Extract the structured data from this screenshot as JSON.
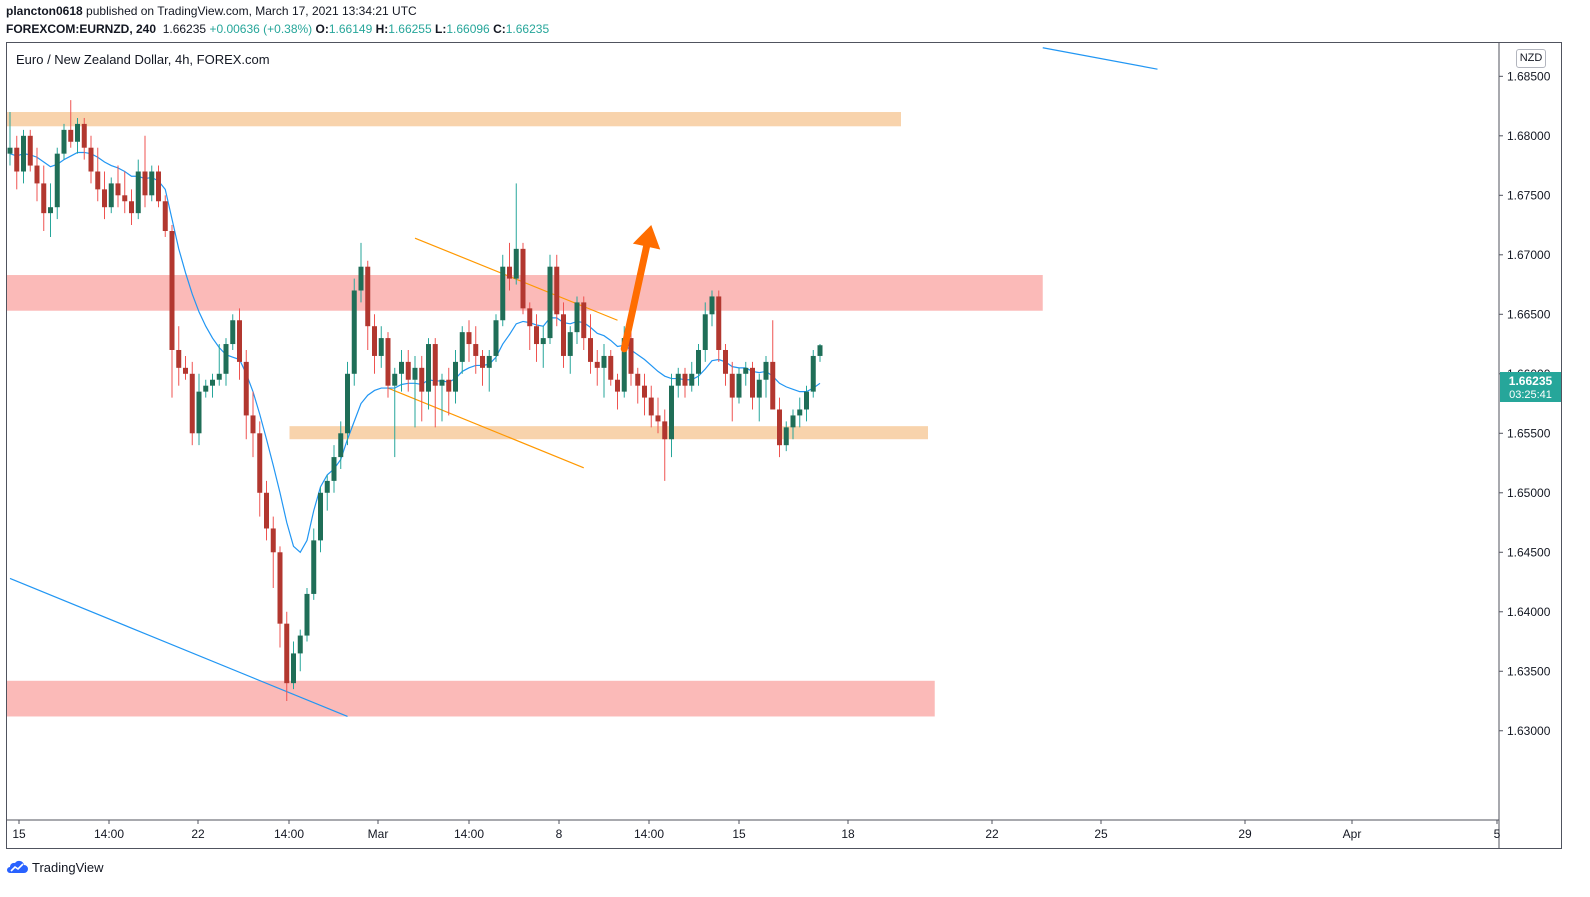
{
  "header": {
    "author": "plancton0618",
    "published_text": "published on TradingView.com, March 17, 2021 13:34:21 UTC",
    "ticker": "FOREXCOM:EURNZD, 240",
    "last": "1.66235",
    "change": "+0.00636 (+0.38%)",
    "o_label": "O:",
    "o_value": "1.66149",
    "h_label": "H:",
    "h_value": "1.66255",
    "l_label": "L:",
    "l_value": "1.66096",
    "c_label": "C:",
    "c_value": "1.66235"
  },
  "chart": {
    "symbol_title": "Euro / New Zealand Dollar, 4h, FOREX.com",
    "currency": "NZD",
    "price_tag": "1.66235",
    "countdown": "03:25:41"
  },
  "chart_data": {
    "type": "candlestick",
    "title": "Euro / New Zealand Dollar, 4h, FOREX.com",
    "y_axis": {
      "ticks": [
        "1.68500",
        "1.68000",
        "1.67500",
        "1.67000",
        "1.66500",
        "1.66000",
        "1.65500",
        "1.65000",
        "1.64500",
        "1.64000",
        "1.63500",
        "1.63000"
      ],
      "range": [
        1.6225,
        1.6878
      ]
    },
    "x_axis": {
      "ticks": [
        "15",
        "14:00",
        "22",
        "14:00",
        "Mar",
        "14:00",
        "8",
        "14:00",
        "15",
        "18",
        "22",
        "25",
        "29",
        "Apr",
        "5"
      ]
    },
    "ohlc": [
      [
        1.6785,
        1.682,
        1.6775,
        1.679
      ],
      [
        1.679,
        1.68,
        1.6755,
        1.677
      ],
      [
        1.677,
        1.6805,
        1.676,
        1.68
      ],
      [
        1.68,
        1.6805,
        1.677,
        1.6775
      ],
      [
        1.6775,
        1.679,
        1.6745,
        1.676
      ],
      [
        1.676,
        1.6775,
        1.672,
        1.6735
      ],
      [
        1.6735,
        1.676,
        1.6715,
        1.674
      ],
      [
        1.674,
        1.679,
        1.673,
        1.6785
      ],
      [
        1.6785,
        1.681,
        1.678,
        1.6805
      ],
      [
        1.6805,
        1.683,
        1.679,
        1.6795
      ],
      [
        1.6795,
        1.6815,
        1.6785,
        1.681
      ],
      [
        1.681,
        1.6815,
        1.678,
        1.679
      ],
      [
        1.679,
        1.68,
        1.676,
        1.677
      ],
      [
        1.677,
        1.679,
        1.6745,
        1.6755
      ],
      [
        1.6755,
        1.677,
        1.673,
        1.674
      ],
      [
        1.674,
        1.6765,
        1.6735,
        1.676
      ],
      [
        1.676,
        1.6775,
        1.674,
        1.675
      ],
      [
        1.675,
        1.677,
        1.6735,
        1.6745
      ],
      [
        1.6745,
        1.6755,
        1.6725,
        1.6735
      ],
      [
        1.6735,
        1.678,
        1.673,
        1.677
      ],
      [
        1.677,
        1.68,
        1.674,
        1.675
      ],
      [
        1.675,
        1.6775,
        1.6745,
        1.677
      ],
      [
        1.677,
        1.6775,
        1.674,
        1.6745
      ],
      [
        1.6745,
        1.675,
        1.6715,
        1.672
      ],
      [
        1.672,
        1.6725,
        1.658,
        1.662
      ],
      [
        1.662,
        1.664,
        1.659,
        1.6605
      ],
      [
        1.6605,
        1.6615,
        1.6595,
        1.66
      ],
      [
        1.66,
        1.661,
        1.654,
        1.655
      ],
      [
        1.655,
        1.66,
        1.654,
        1.6585
      ],
      [
        1.6585,
        1.6595,
        1.658,
        1.659
      ],
      [
        1.659,
        1.66,
        1.658,
        1.6595
      ],
      [
        1.6595,
        1.6625,
        1.659,
        1.66
      ],
      [
        1.66,
        1.663,
        1.659,
        1.6625
      ],
      [
        1.6625,
        1.665,
        1.662,
        1.6645
      ],
      [
        1.6645,
        1.6655,
        1.6595,
        1.661
      ],
      [
        1.661,
        1.662,
        1.6545,
        1.6565
      ],
      [
        1.6565,
        1.6585,
        1.653,
        1.655
      ],
      [
        1.655,
        1.656,
        1.648,
        1.65
      ],
      [
        1.65,
        1.651,
        1.646,
        1.647
      ],
      [
        1.647,
        1.648,
        1.642,
        1.645
      ],
      [
        1.645,
        1.6455,
        1.637,
        1.639
      ],
      [
        1.639,
        1.64,
        1.6325,
        1.634
      ],
      [
        1.634,
        1.6375,
        1.6335,
        1.6365
      ],
      [
        1.6365,
        1.6385,
        1.635,
        1.638
      ],
      [
        1.638,
        1.642,
        1.6375,
        1.6415
      ],
      [
        1.6415,
        1.647,
        1.641,
        1.646
      ],
      [
        1.646,
        1.6505,
        1.645,
        1.65
      ],
      [
        1.65,
        1.6515,
        1.6485,
        1.651
      ],
      [
        1.651,
        1.654,
        1.65,
        1.653
      ],
      [
        1.653,
        1.656,
        1.652,
        1.655
      ],
      [
        1.655,
        1.661,
        1.654,
        1.66
      ],
      [
        1.66,
        1.668,
        1.659,
        1.667
      ],
      [
        1.667,
        1.671,
        1.666,
        1.669
      ],
      [
        1.669,
        1.6695,
        1.662,
        1.664
      ],
      [
        1.664,
        1.665,
        1.66,
        1.6615
      ],
      [
        1.6615,
        1.664,
        1.6605,
        1.663
      ],
      [
        1.663,
        1.6635,
        1.658,
        1.659
      ],
      [
        1.659,
        1.6605,
        1.653,
        1.66
      ],
      [
        1.66,
        1.662,
        1.6585,
        1.661
      ],
      [
        1.661,
        1.662,
        1.6585,
        1.6595
      ],
      [
        1.6595,
        1.6615,
        1.6555,
        1.6605
      ],
      [
        1.6605,
        1.6615,
        1.656,
        1.6585
      ],
      [
        1.6585,
        1.663,
        1.657,
        1.6625
      ],
      [
        1.6625,
        1.663,
        1.6555,
        1.659
      ],
      [
        1.659,
        1.66,
        1.656,
        1.6595
      ],
      [
        1.6595,
        1.6605,
        1.6565,
        1.6585
      ],
      [
        1.6585,
        1.662,
        1.6575,
        1.661
      ],
      [
        1.661,
        1.664,
        1.66,
        1.6635
      ],
      [
        1.6635,
        1.6645,
        1.661,
        1.6625
      ],
      [
        1.6625,
        1.664,
        1.66,
        1.6615
      ],
      [
        1.6615,
        1.662,
        1.659,
        1.6605
      ],
      [
        1.6605,
        1.662,
        1.6585,
        1.6615
      ],
      [
        1.6615,
        1.665,
        1.661,
        1.6645
      ],
      [
        1.6645,
        1.67,
        1.664,
        1.669
      ],
      [
        1.669,
        1.671,
        1.667,
        1.668
      ],
      [
        1.668,
        1.676,
        1.6675,
        1.6705
      ],
      [
        1.6705,
        1.671,
        1.665,
        1.6655
      ],
      [
        1.6655,
        1.666,
        1.662,
        1.664
      ],
      [
        1.664,
        1.665,
        1.661,
        1.6625
      ],
      [
        1.6625,
        1.664,
        1.6605,
        1.663
      ],
      [
        1.663,
        1.67,
        1.6625,
        1.669
      ],
      [
        1.669,
        1.67,
        1.664,
        1.665
      ],
      [
        1.665,
        1.666,
        1.6605,
        1.6615
      ],
      [
        1.6615,
        1.664,
        1.66,
        1.6635
      ],
      [
        1.6635,
        1.6665,
        1.6625,
        1.666
      ],
      [
        1.666,
        1.6665,
        1.662,
        1.663
      ],
      [
        1.663,
        1.665,
        1.66,
        1.661
      ],
      [
        1.661,
        1.662,
        1.659,
        1.6605
      ],
      [
        1.6605,
        1.6625,
        1.658,
        1.6615
      ],
      [
        1.6615,
        1.662,
        1.659,
        1.6595
      ],
      [
        1.6595,
        1.66,
        1.657,
        1.6585
      ],
      [
        1.6585,
        1.664,
        1.658,
        1.663
      ],
      [
        1.663,
        1.664,
        1.659,
        1.66
      ],
      [
        1.66,
        1.6605,
        1.6575,
        1.659
      ],
      [
        1.659,
        1.66,
        1.6565,
        1.658
      ],
      [
        1.658,
        1.659,
        1.6555,
        1.6565
      ],
      [
        1.6565,
        1.658,
        1.655,
        1.656
      ],
      [
        1.656,
        1.657,
        1.651,
        1.6545
      ],
      [
        1.6545,
        1.66,
        1.653,
        1.659
      ],
      [
        1.659,
        1.6605,
        1.658,
        1.66
      ],
      [
        1.66,
        1.6605,
        1.658,
        1.659
      ],
      [
        1.659,
        1.661,
        1.6585,
        1.66
      ],
      [
        1.66,
        1.6625,
        1.659,
        1.662
      ],
      [
        1.662,
        1.666,
        1.661,
        1.665
      ],
      [
        1.665,
        1.667,
        1.664,
        1.6665
      ],
      [
        1.6665,
        1.667,
        1.661,
        1.662
      ],
      [
        1.662,
        1.6625,
        1.659,
        1.66
      ],
      [
        1.66,
        1.661,
        1.656,
        1.658
      ],
      [
        1.658,
        1.6605,
        1.6575,
        1.66
      ],
      [
        1.66,
        1.661,
        1.659,
        1.6605
      ],
      [
        1.6605,
        1.661,
        1.657,
        1.658
      ],
      [
        1.658,
        1.66,
        1.656,
        1.6595
      ],
      [
        1.6595,
        1.6615,
        1.658,
        1.661
      ],
      [
        1.661,
        1.6645,
        1.6575,
        1.657
      ],
      [
        1.657,
        1.658,
        1.653,
        1.654
      ],
      [
        1.654,
        1.656,
        1.6535,
        1.6555
      ],
      [
        1.6555,
        1.657,
        1.6545,
        1.6565
      ],
      [
        1.6565,
        1.658,
        1.6555,
        1.657
      ],
      [
        1.657,
        1.659,
        1.656,
        1.6585
      ],
      [
        1.6585,
        1.662,
        1.658,
        1.6615
      ],
      [
        1.6615,
        1.6625,
        1.661,
        1.6624
      ]
    ],
    "ema": [
      1.6785,
      1.6783,
      1.6785,
      1.6784,
      1.6782,
      1.6778,
      1.6774,
      1.6776,
      1.678,
      1.6783,
      1.6786,
      1.6786,
      1.6785,
      1.6782,
      1.6778,
      1.6775,
      1.6773,
      1.677,
      1.6766,
      1.6766,
      1.6764,
      1.6765,
      1.6762,
      1.6755,
      1.673,
      1.6705,
      1.6685,
      1.6667,
      1.6652,
      1.664,
      1.663,
      1.6622,
      1.6616,
      1.6614,
      1.6612,
      1.66,
      1.6585,
      1.6566,
      1.6545,
      1.6523,
      1.65,
      1.6475,
      1.6455,
      1.645,
      1.646,
      1.6485,
      1.6505,
      1.6515,
      1.652,
      1.6528,
      1.6545,
      1.656,
      1.6575,
      1.6582,
      1.6586,
      1.6588,
      1.6588,
      1.6588,
      1.6591,
      1.6592,
      1.6592,
      1.6591,
      1.6595,
      1.6594,
      1.6594,
      1.6593,
      1.6596,
      1.6602,
      1.6605,
      1.6607,
      1.6607,
      1.6608,
      1.6614,
      1.6625,
      1.6633,
      1.6642,
      1.6644,
      1.6643,
      1.6641,
      1.664,
      1.6647,
      1.6647,
      1.6643,
      1.6642,
      1.6644,
      1.6643,
      1.6639,
      1.6634,
      1.6632,
      1.6628,
      1.6623,
      1.6624,
      1.662,
      1.6616,
      1.6612,
      1.6607,
      1.6602,
      1.6598,
      1.6596,
      1.6596,
      1.6595,
      1.6595,
      1.6598,
      1.6604,
      1.6611,
      1.6612,
      1.661,
      1.6606,
      1.6605,
      1.6605,
      1.6602,
      1.6601,
      1.6602,
      1.6598,
      1.6592,
      1.6589,
      1.6587,
      1.6585,
      1.6585,
      1.6588,
      1.6592
    ],
    "zones": [
      {
        "type": "resistance",
        "color": "#f8d1a8",
        "low": 1.6808,
        "high": 1.682,
        "start": 0,
        "end": 132
      },
      {
        "type": "resistance",
        "color": "#fbb6b4",
        "low": 1.6653,
        "high": 1.6683,
        "start": 0,
        "end": 153
      },
      {
        "type": "support",
        "color": "#f8d1a8",
        "low": 1.6545,
        "high": 1.6556,
        "start": 42,
        "end": 136
      },
      {
        "type": "support",
        "color": "#fbb6b4",
        "low": 1.6312,
        "high": 1.6342,
        "start": 0,
        "end": 137
      }
    ],
    "trendlines": [
      {
        "color": "#2196f3",
        "from": [
          0,
          1.6428
        ],
        "to": [
          50,
          1.6312
        ]
      },
      {
        "color": "#2196f3",
        "from": [
          153,
          1.6874
        ],
        "to": [
          170,
          1.6856
        ]
      },
      {
        "color": "#ff9800",
        "from": [
          60,
          1.6714
        ],
        "to": [
          90,
          1.6645
        ]
      },
      {
        "color": "#ff9800",
        "from": [
          56,
          1.6588
        ],
        "to": [
          85,
          1.6521
        ]
      }
    ],
    "projection_arrow": {
      "color": "#ff6d00",
      "from": [
        91,
        1.6621
      ],
      "to": [
        95,
        1.6725
      ]
    },
    "colors": {
      "up": "#26a69a",
      "down": "#ef5350",
      "wick_up": "#26a69a",
      "wick_down": "#ef5350",
      "body_up": "#1f6e57",
      "body_down": "#b2372f",
      "ema": "#2196f3"
    }
  }
}
